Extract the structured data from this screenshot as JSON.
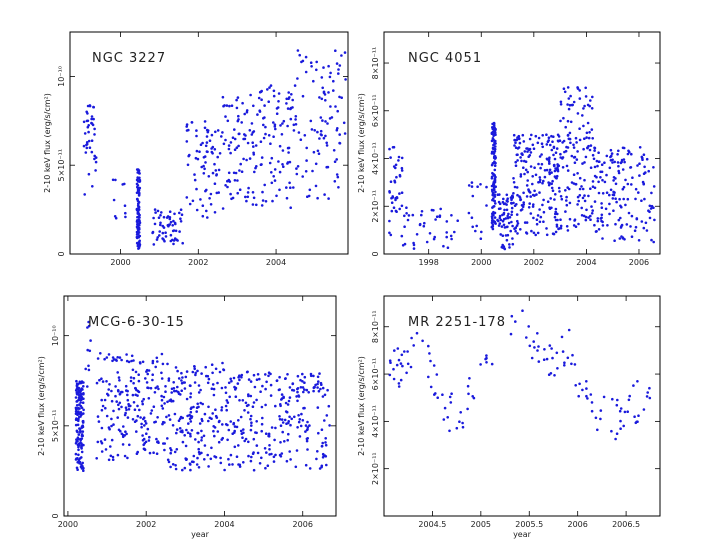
{
  "chart_data": [
    {
      "type": "scatter",
      "title": "NGC 3227",
      "xlabel": "",
      "ylabel": "2-10 keV flux (erg/s/cm²)",
      "xlim": [
        1998.7,
        2005.85
      ],
      "ylim": [
        0,
        1.25e-10
      ],
      "xticks": [
        2000,
        2002,
        2004
      ],
      "xtick_labels": [
        "2000",
        "2002",
        "2004"
      ],
      "yticks": [
        0,
        5e-11,
        1e-10
      ],
      "ytick_labels": [
        "0",
        "5×10⁻¹¹",
        "10⁻¹⁰"
      ],
      "segments": [
        {
          "t0": 1999.05,
          "t1": 1999.4,
          "ymin": 3e-11,
          "ymax": 8.5e-11,
          "n": 40
        },
        {
          "t0": 1999.8,
          "t1": 2000.15,
          "ymin": 2e-11,
          "ymax": 5.5e-11,
          "n": 10
        },
        {
          "t0": 2000.42,
          "t1": 2000.5,
          "ymin": 3e-12,
          "ymax": 4.8e-11,
          "n": 110
        },
        {
          "t0": 2000.8,
          "t1": 2001.6,
          "ymin": 5e-12,
          "ymax": 2.5e-11,
          "n": 60
        },
        {
          "t0": 2001.7,
          "t1": 2002.5,
          "ymin": 2e-11,
          "ymax": 7.5e-11,
          "n": 70
        },
        {
          "t0": 2002.5,
          "t1": 2003.5,
          "ymin": 2.5e-11,
          "ymax": 9e-11,
          "n": 90
        },
        {
          "t0": 2003.5,
          "t1": 2004.5,
          "ymin": 2.5e-11,
          "ymax": 9.5e-11,
          "n": 90
        },
        {
          "t0": 2004.5,
          "t1": 2005.8,
          "ymin": 3e-11,
          "ymax": 1.15e-10,
          "n": 100
        }
      ]
    },
    {
      "type": "scatter",
      "title": "NGC 4051",
      "xlabel": "",
      "ylabel": "2-10 keV flux (erg/s/cm²)",
      "xlim": [
        1996.3,
        2006.8
      ],
      "ylim": [
        0,
        9.3e-11
      ],
      "xticks": [
        1998,
        2000,
        2002,
        2004,
        2006
      ],
      "xtick_labels": [
        "1998",
        "2000",
        "2002",
        "2004",
        "2006"
      ],
      "yticks": [
        0,
        2e-11,
        4e-11,
        6e-11,
        8e-11
      ],
      "ytick_labels": [
        "0",
        "2×10⁻¹¹",
        "4×10⁻¹¹",
        "6×10⁻¹¹",
        "8×10⁻¹¹"
      ],
      "segments": [
        {
          "t0": 1996.5,
          "t1": 1997.0,
          "ymin": 5e-12,
          "ymax": 4.5e-11,
          "n": 40
        },
        {
          "t0": 1997.0,
          "t1": 1999.2,
          "ymin": 2e-12,
          "ymax": 2e-11,
          "n": 40
        },
        {
          "t0": 1999.5,
          "t1": 2000.2,
          "ymin": 2e-12,
          "ymax": 3e-11,
          "n": 15
        },
        {
          "t0": 2000.4,
          "t1": 2000.55,
          "ymin": 1e-11,
          "ymax": 5.5e-11,
          "n": 120
        },
        {
          "t0": 2000.6,
          "t1": 2001.2,
          "ymin": 2e-12,
          "ymax": 2.5e-11,
          "n": 70
        },
        {
          "t0": 2001.2,
          "t1": 2003.0,
          "ymin": 8e-12,
          "ymax": 5e-11,
          "n": 220
        },
        {
          "t0": 2003.0,
          "t1": 2004.3,
          "ymin": 8e-12,
          "ymax": 7e-11,
          "n": 140
        },
        {
          "t0": 2004.3,
          "t1": 2006.6,
          "ymin": 5e-12,
          "ymax": 4.5e-11,
          "n": 160
        }
      ]
    },
    {
      "type": "scatter",
      "title": "MCG-6-30-15",
      "xlabel": "year",
      "ylabel": "2-10 keV flux (erg/s/cm²)",
      "xlim": [
        1999.9,
        2006.85
      ],
      "ylim": [
        0,
        1.22e-10
      ],
      "xticks": [
        2000,
        2002,
        2004,
        2006
      ],
      "xtick_labels": [
        "2000",
        "2002",
        "2004",
        "2006"
      ],
      "yticks": [
        0,
        5e-11,
        1e-10
      ],
      "ytick_labels": [
        "0",
        "5×10⁻¹¹",
        "10⁻¹⁰"
      ],
      "segments": [
        {
          "t0": 2000.2,
          "t1": 2000.4,
          "ymin": 2.5e-11,
          "ymax": 7.5e-11,
          "n": 150
        },
        {
          "t0": 2000.45,
          "t1": 2000.6,
          "ymin": 7e-11,
          "ymax": 1.1e-10,
          "n": 10
        },
        {
          "t0": 2000.7,
          "t1": 2001.3,
          "ymin": 3e-11,
          "ymax": 9.5e-11,
          "n": 60
        },
        {
          "t0": 2001.3,
          "t1": 2002.5,
          "ymin": 3e-11,
          "ymax": 9e-11,
          "n": 150
        },
        {
          "t0": 2002.5,
          "t1": 2004.0,
          "ymin": 2.5e-11,
          "ymax": 8.5e-11,
          "n": 180
        },
        {
          "t0": 2004.0,
          "t1": 2005.5,
          "ymin": 2.5e-11,
          "ymax": 8e-11,
          "n": 150
        },
        {
          "t0": 2005.5,
          "t1": 2006.7,
          "ymin": 2.5e-11,
          "ymax": 8e-11,
          "n": 120
        }
      ]
    },
    {
      "type": "scatter",
      "title": "MR 2251-178",
      "xlabel": "year",
      "ylabel": "2-10 keV flux (erg/s/cm²)",
      "xlim": [
        2004.0,
        2006.85
      ],
      "ylim": [
        0,
        9.3e-11
      ],
      "xticks": [
        2004.5,
        2005,
        2005.5,
        2006,
        2006.5
      ],
      "xtick_labels": [
        "2004.5",
        "2005",
        "2005.5",
        "2006",
        "2006.5"
      ],
      "yticks": [
        2e-11,
        4e-11,
        6e-11,
        8e-11
      ],
      "ytick_labels": [
        "2×10⁻¹¹",
        "4×10⁻¹¹",
        "6×10⁻¹¹",
        "8×10⁻¹¹"
      ],
      "trend": [
        [
          2004.05,
          6.5e-11
        ],
        [
          2004.2,
          6.3e-11
        ],
        [
          2004.35,
          7.2e-11
        ],
        [
          2004.5,
          6e-11
        ],
        [
          2004.65,
          4.5e-11
        ],
        [
          2004.8,
          4.2e-11
        ],
        [
          2004.95,
          6e-11
        ],
        [
          2005.1,
          6.5e-11
        ],
        [
          2005.3,
          8.5e-11
        ],
        [
          2005.45,
          7.8e-11
        ],
        [
          2005.6,
          7e-11
        ],
        [
          2005.75,
          6.8e-11
        ],
        [
          2005.9,
          7.2e-11
        ],
        [
          2006.05,
          5e-11
        ],
        [
          2006.2,
          4.3e-11
        ],
        [
          2006.4,
          4e-11
        ],
        [
          2006.55,
          4.5e-11
        ],
        [
          2006.75,
          5.5e-11
        ]
      ],
      "gaps": [
        [
          2005.17,
          2005.27
        ]
      ],
      "n": 140,
      "scatter": 9e-12
    }
  ]
}
